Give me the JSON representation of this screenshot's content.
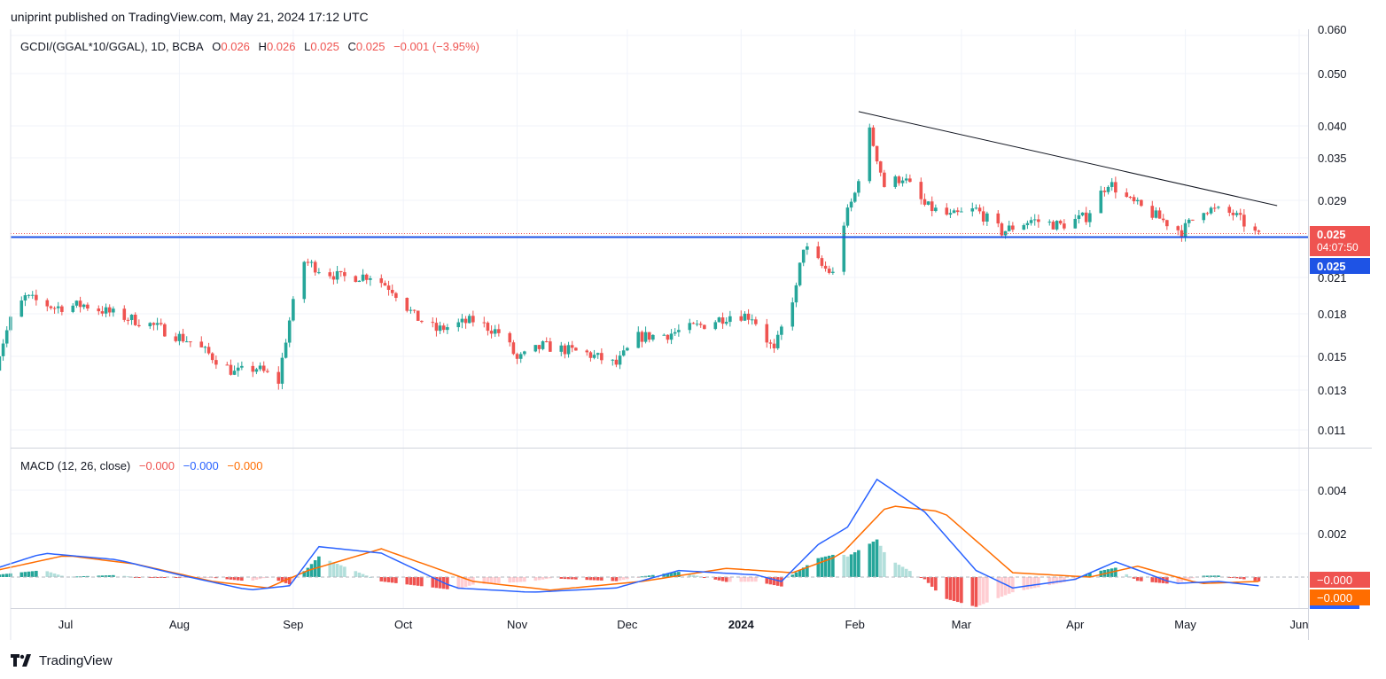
{
  "header": {
    "published": "uniprint published on TradingView.com, May 21, 2024 17:12 UTC"
  },
  "footer": {
    "brand": "TradingView"
  },
  "legend": {
    "symbol": "GCDI/(GGAL*10/GGAL), 1D, BCBA",
    "o_label": "O",
    "o_val": "0.026",
    "h_label": "H",
    "h_val": "0.026",
    "l_label": "L",
    "l_val": "0.025",
    "c_label": "C",
    "c_val": "0.025",
    "change": "−0.001 (−3.95%)"
  },
  "macd_legend": {
    "title": "MACD (12, 26, close)",
    "hist": "−0.000",
    "macd": "−0.000",
    "signal": "−0.000"
  },
  "badges": {
    "last_price": "0.025",
    "countdown": "04:07:50",
    "level": "0.025",
    "macd_hist": "−0.000",
    "macd_signal": "−0.000"
  },
  "colors": {
    "up": "#26a69a",
    "down": "#ef5350",
    "macd_line": "#2962ff",
    "signal_line": "#ff6d00",
    "level_line": "#1e53e5",
    "hist_up_light": "#b2dfdb",
    "hist_down_light": "#ffcdd2"
  },
  "chart_data": [
    {
      "type": "candlestick",
      "scale": "log",
      "price_axis_ticks": [
        "0.050",
        "0.040",
        "0.035",
        "0.029",
        "0.025",
        "0.021",
        "0.018",
        "0.015",
        "0.013",
        "0.011"
      ],
      "price_axis_top_cut": "0.060",
      "x_tick_labels": [
        "Jul",
        "Aug",
        "Sep",
        "Oct",
        "Nov",
        "Dec",
        "2024",
        "Feb",
        "Mar",
        "Apr",
        "May",
        "Jun"
      ],
      "x_tick_dates": [
        "2023-07-01",
        "2023-08-01",
        "2023-09-01",
        "2023-10-01",
        "2023-11-01",
        "2023-12-01",
        "2024-01-01",
        "2024-02-01",
        "2024-03-01",
        "2024-04-01",
        "2024-05-01",
        "2024-06-01"
      ],
      "horizontal_level": 0.025,
      "trendline": {
        "from": {
          "date": "2024-02-02",
          "price": 0.0425
        },
        "to": {
          "date": "2024-05-26",
          "price": 0.0285
        }
      },
      "anchors": [
        [
          "2023-06-12",
          0.0145
        ],
        [
          "2023-06-16",
          0.0175
        ],
        [
          "2023-06-20",
          0.0193
        ],
        [
          "2023-06-28",
          0.0185
        ],
        [
          "2023-07-06",
          0.0187
        ],
        [
          "2023-07-14",
          0.018
        ],
        [
          "2023-07-24",
          0.0172
        ],
        [
          "2023-08-04",
          0.016
        ],
        [
          "2023-08-10",
          0.015
        ],
        [
          "2023-08-16",
          0.014
        ],
        [
          "2023-08-22",
          0.0143
        ],
        [
          "2023-08-28",
          0.0135
        ],
        [
          "2023-08-31",
          0.0175
        ],
        [
          "2023-09-04",
          0.0225
        ],
        [
          "2023-09-08",
          0.0218
        ],
        [
          "2023-09-14",
          0.021
        ],
        [
          "2023-09-22",
          0.0212
        ],
        [
          "2023-09-28",
          0.02
        ],
        [
          "2023-10-04",
          0.0178
        ],
        [
          "2023-10-10",
          0.0168
        ],
        [
          "2023-10-20",
          0.0175
        ],
        [
          "2023-10-28",
          0.0165
        ],
        [
          "2023-11-01",
          0.0148
        ],
        [
          "2023-11-08",
          0.0157
        ],
        [
          "2023-11-20",
          0.0152
        ],
        [
          "2023-11-28",
          0.0145
        ],
        [
          "2023-12-04",
          0.0163
        ],
        [
          "2023-12-12",
          0.0165
        ],
        [
          "2023-12-22",
          0.0172
        ],
        [
          "2023-12-30",
          0.018
        ],
        [
          "2024-01-04",
          0.0178
        ],
        [
          "2024-01-10",
          0.0153
        ],
        [
          "2024-01-16",
          0.02
        ],
        [
          "2024-01-18",
          0.024
        ],
        [
          "2024-01-23",
          0.022
        ],
        [
          "2024-01-26",
          0.0213
        ],
        [
          "2024-01-29",
          0.0265
        ],
        [
          "2024-02-01",
          0.03
        ],
        [
          "2024-02-05",
          0.039
        ],
        [
          "2024-02-09",
          0.031
        ],
        [
          "2024-02-14",
          0.0322
        ],
        [
          "2024-02-20",
          0.0285
        ],
        [
          "2024-02-27",
          0.0272
        ],
        [
          "2024-03-05",
          0.028
        ],
        [
          "2024-03-12",
          0.0255
        ],
        [
          "2024-03-20",
          0.0268
        ],
        [
          "2024-03-28",
          0.0262
        ],
        [
          "2024-04-04",
          0.0272
        ],
        [
          "2024-04-10",
          0.0315
        ],
        [
          "2024-04-16",
          0.029
        ],
        [
          "2024-04-24",
          0.027
        ],
        [
          "2024-04-30",
          0.0255
        ],
        [
          "2024-05-06",
          0.0282
        ],
        [
          "2024-05-14",
          0.0275
        ],
        [
          "2024-05-21",
          0.025
        ]
      ]
    },
    {
      "type": "macd",
      "params": "12, 26, close",
      "y_ticks": [
        "0.004",
        "0.002"
      ],
      "macd_anchors": [
        [
          "2023-06-12",
          0.0004
        ],
        [
          "2023-06-25",
          0.0011
        ],
        [
          "2023-07-15",
          0.0008
        ],
        [
          "2023-08-01",
          0.0001
        ],
        [
          "2023-08-20",
          -0.0006
        ],
        [
          "2023-08-31",
          -0.0004
        ],
        [
          "2023-09-08",
          0.0014
        ],
        [
          "2023-09-25",
          0.0011
        ],
        [
          "2023-10-15",
          -0.0005
        ],
        [
          "2023-11-05",
          -0.0007
        ],
        [
          "2023-11-28",
          -0.0005
        ],
        [
          "2023-12-15",
          0.0003
        ],
        [
          "2024-01-05",
          0.0001
        ],
        [
          "2024-01-12",
          -0.0002
        ],
        [
          "2024-01-22",
          0.0015
        ],
        [
          "2024-01-30",
          0.0023
        ],
        [
          "2024-02-07",
          0.0045
        ],
        [
          "2024-02-20",
          0.003
        ],
        [
          "2024-03-05",
          0.0003
        ],
        [
          "2024-03-15",
          -0.0005
        ],
        [
          "2024-04-01",
          -0.0001
        ],
        [
          "2024-04-12",
          0.0007
        ],
        [
          "2024-04-28",
          -0.0003
        ],
        [
          "2024-05-10",
          -0.0002
        ],
        [
          "2024-05-21",
          -0.0004
        ]
      ],
      "signal_anchors": [
        [
          "2023-06-12",
          0.0003
        ],
        [
          "2023-07-01",
          0.001
        ],
        [
          "2023-07-20",
          0.0006
        ],
        [
          "2023-08-10",
          -0.0002
        ],
        [
          "2023-08-25",
          -0.0005
        ],
        [
          "2023-09-05",
          0.0003
        ],
        [
          "2023-09-25",
          0.0013
        ],
        [
          "2023-10-20",
          -0.0002
        ],
        [
          "2023-11-10",
          -0.0006
        ],
        [
          "2023-12-05",
          -0.0002
        ],
        [
          "2023-12-28",
          0.0004
        ],
        [
          "2024-01-15",
          0.0002
        ],
        [
          "2024-01-28",
          0.001
        ],
        [
          "2024-02-10",
          0.0033
        ],
        [
          "2024-02-25",
          0.003
        ],
        [
          "2024-03-15",
          0.0002
        ],
        [
          "2024-04-05",
          0.0
        ],
        [
          "2024-04-18",
          0.0005
        ],
        [
          "2024-05-05",
          -0.0003
        ],
        [
          "2024-05-21",
          -0.0002
        ]
      ]
    }
  ]
}
